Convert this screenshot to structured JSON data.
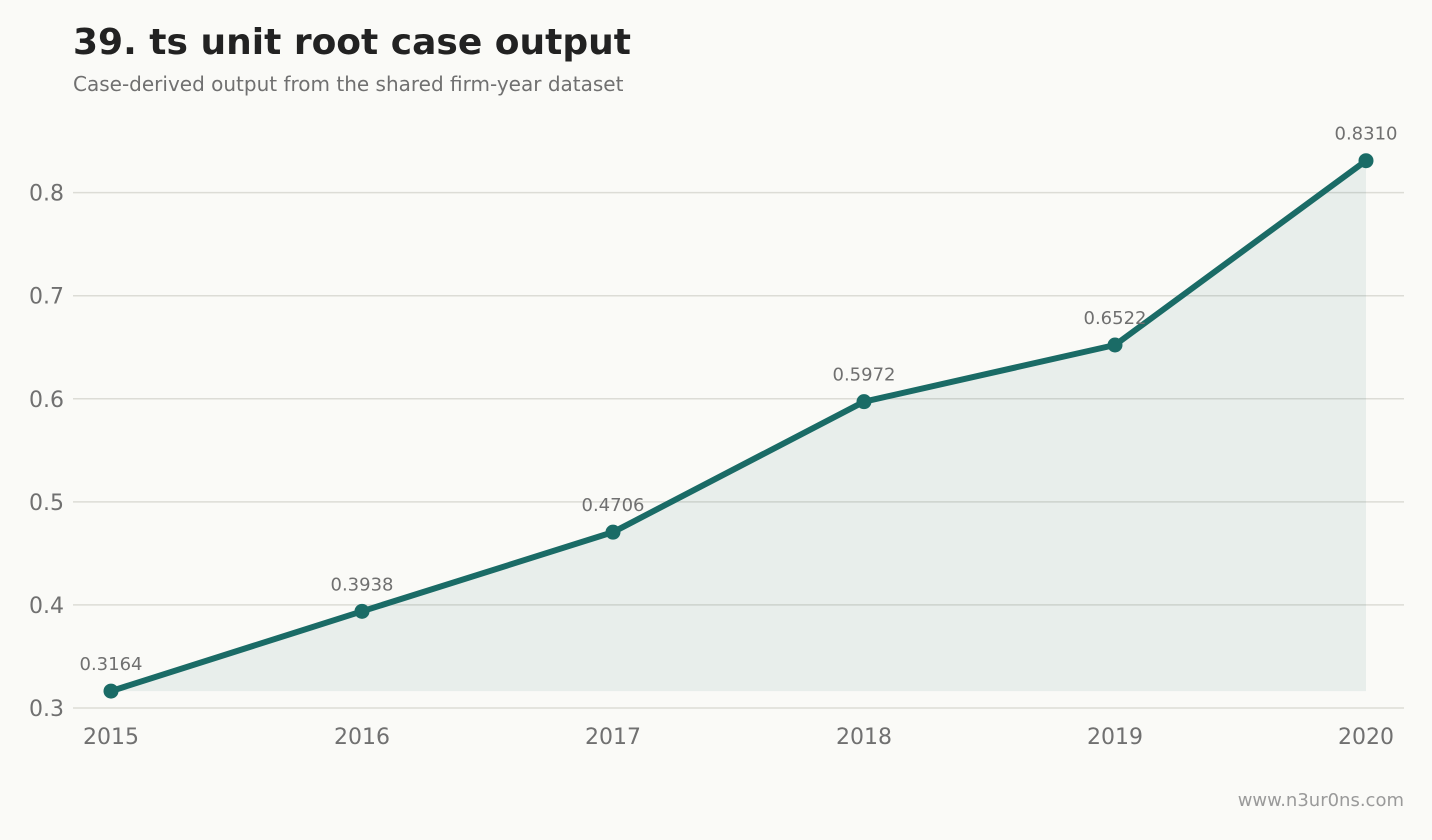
{
  "header": {
    "title": "39. ts unit root case output",
    "subtitle": "Case-derived output from the shared firm-year dataset"
  },
  "footer": {
    "credit": "www.n3ur0ns.com"
  },
  "colors": {
    "background": "#fafaf7",
    "line": "#1a6b66",
    "area": "#1a6b66",
    "grid": "#dcdcd6",
    "tick_text": "#707070",
    "label_text": "#707070"
  },
  "chart_data": {
    "type": "area",
    "x": [
      "2015",
      "2016",
      "2017",
      "2018",
      "2019",
      "2020"
    ],
    "series": [
      {
        "values": [
          0.3164,
          0.3938,
          0.4706,
          0.5972,
          0.6522,
          0.831
        ]
      }
    ],
    "data_labels": [
      "0.3164",
      "0.3938",
      "0.4706",
      "0.5972",
      "0.6522",
      "0.8310"
    ],
    "y_ticks": [
      0.3,
      0.4,
      0.5,
      0.6,
      0.7,
      0.8
    ],
    "y_tick_labels": [
      "0.3",
      "0.4",
      "0.5",
      "0.6",
      "0.7",
      "0.8"
    ],
    "ylim": [
      0.3,
      0.8608
    ],
    "grid": true,
    "markers": true,
    "legend": "none",
    "title": "39. ts unit root case output",
    "subtitle": "Case-derived output from the shared firm-year dataset",
    "xlabel": "",
    "ylabel": ""
  }
}
